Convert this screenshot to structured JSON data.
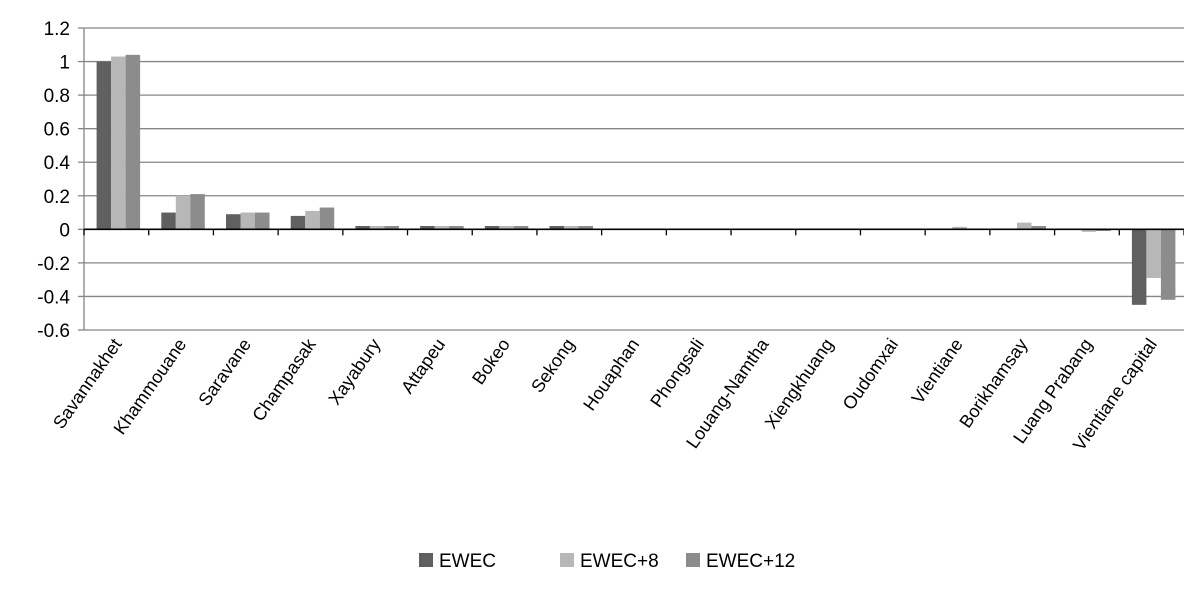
{
  "chart_data": {
    "type": "bar",
    "title": "",
    "xlabel": "",
    "ylabel": "",
    "ylim": [
      -0.6,
      1.2
    ],
    "yticks": [
      1.2,
      1,
      0.8,
      0.6,
      0.4,
      0.2,
      0,
      -0.2,
      -0.4,
      -0.6
    ],
    "ytick_labels": [
      "1.2",
      "1",
      "0.8",
      "0.6",
      "0.4",
      "0.2",
      "0",
      "-0.2",
      "-0.4",
      "-0.6"
    ],
    "grid": true,
    "legend_position": "bottom",
    "categories": [
      "Savannakhet",
      "Khammouane",
      "Saravane",
      "Champasak",
      "Xayabury",
      "Attapeu",
      "Bokeo",
      "Sekong",
      "Houaphan",
      "Phongsali",
      "Louang-Namtha",
      "Xiengkhuang",
      "Oudomxai",
      "Vientiane",
      "Borikhamsay",
      "Luang Prabang",
      "Vientiane capital"
    ],
    "series": [
      {
        "name": "EWEC",
        "color": "#606060",
        "values": [
          1.0,
          0.1,
          0.09,
          0.08,
          0.02,
          0.02,
          0.02,
          0.02,
          0.005,
          0.005,
          0.005,
          0.005,
          0.005,
          0.005,
          0.005,
          0.005,
          -0.45
        ]
      },
      {
        "name": "EWEC+8",
        "color": "#b7b7b7",
        "values": [
          1.03,
          0.2,
          0.1,
          0.11,
          0.02,
          0.02,
          0.02,
          0.02,
          0.005,
          0.005,
          0.005,
          0.005,
          0.005,
          0.015,
          0.04,
          -0.015,
          -0.29
        ]
      },
      {
        "name": "EWEC+12",
        "color": "#8c8c8c",
        "values": [
          1.04,
          0.21,
          0.1,
          0.13,
          0.02,
          0.02,
          0.02,
          0.02,
          0.005,
          0.005,
          0.005,
          0.005,
          0.005,
          0.005,
          0.02,
          -0.01,
          -0.42
        ]
      }
    ]
  }
}
